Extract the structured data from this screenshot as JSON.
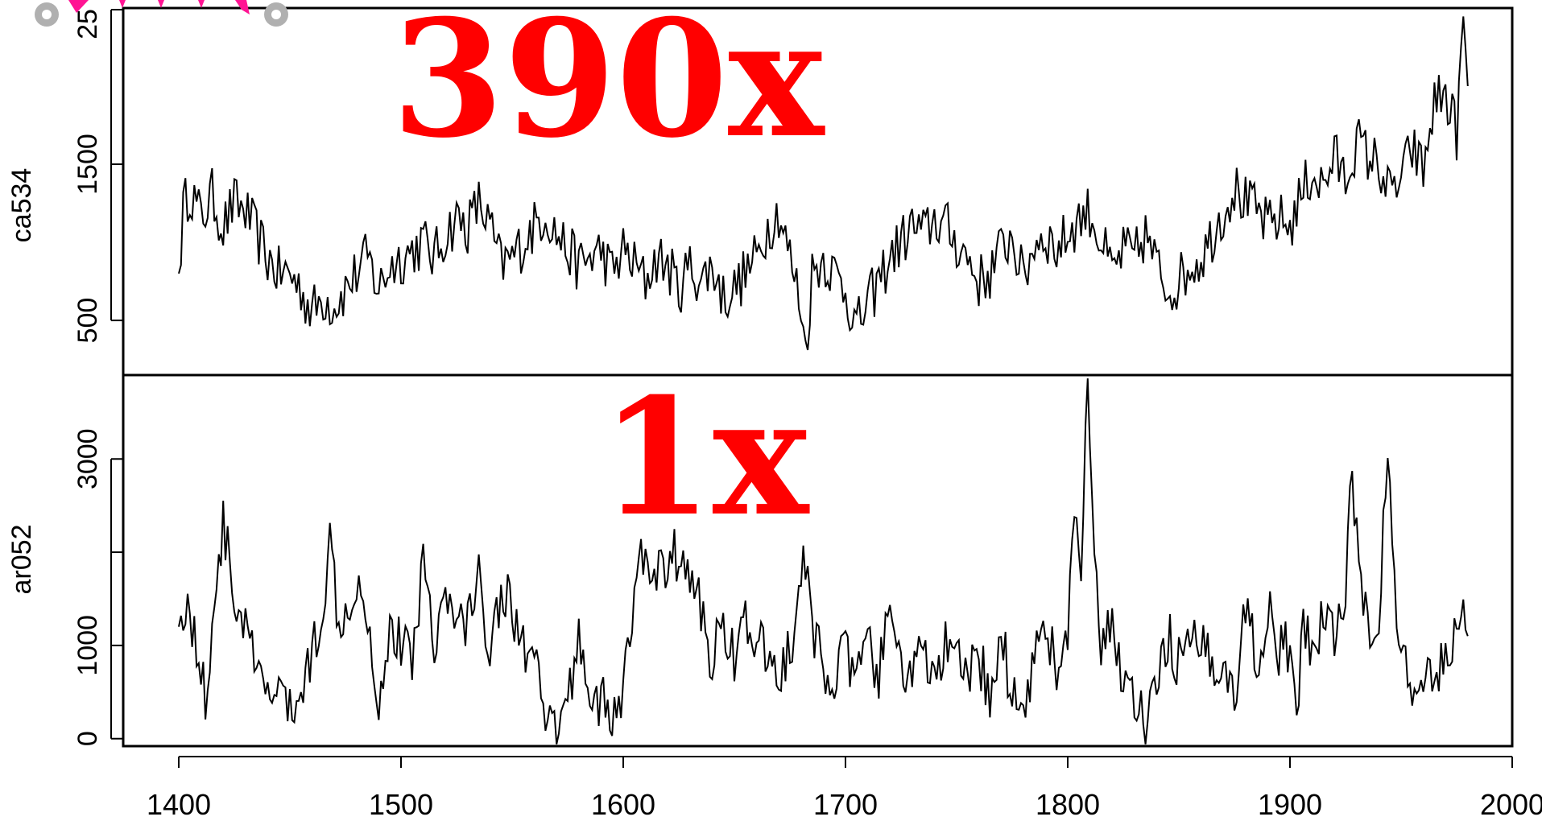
{
  "colors": {
    "overlay_text": "#ff0000",
    "series_line": "#000000",
    "axis": "#000000",
    "marker_pink": "#ff1493",
    "handle_gray": "#b0b0b0"
  },
  "overlay": {
    "top_label": "390x",
    "bottom_label": "1x"
  },
  "chart_data": [
    {
      "type": "line",
      "ylabel": "ca534",
      "ylim": [
        150,
        2500
      ],
      "y_ticks": [
        500,
        1500
      ],
      "y_tick_labels": [
        "500",
        "1500"
      ],
      "top_tick_partial_label": "25",
      "xlim": [
        1375,
        2000
      ],
      "grid": false,
      "series": [
        {
          "keypoints": [
            [
              1400,
              800
            ],
            [
              1402,
              1200
            ],
            [
              1405,
              1350
            ],
            [
              1410,
              1150
            ],
            [
              1415,
              1300
            ],
            [
              1420,
              1100
            ],
            [
              1425,
              1250
            ],
            [
              1430,
              1200
            ],
            [
              1435,
              1050
            ],
            [
              1440,
              900
            ],
            [
              1445,
              800
            ],
            [
              1450,
              800
            ],
            [
              1455,
              700
            ],
            [
              1460,
              550
            ],
            [
              1465,
              650
            ],
            [
              1470,
              600
            ],
            [
              1475,
              700
            ],
            [
              1480,
              800
            ],
            [
              1485,
              900
            ],
            [
              1490,
              700
            ],
            [
              1495,
              850
            ],
            [
              1500,
              900
            ],
            [
              1505,
              950
            ],
            [
              1510,
              1000
            ],
            [
              1515,
              900
            ],
            [
              1520,
              1050
            ],
            [
              1525,
              1150
            ],
            [
              1530,
              1100
            ],
            [
              1535,
              1250
            ],
            [
              1540,
              1100
            ],
            [
              1545,
              850
            ],
            [
              1550,
              900
            ],
            [
              1555,
              1000
            ],
            [
              1560,
              1100
            ],
            [
              1565,
              1200
            ],
            [
              1570,
              1050
            ],
            [
              1575,
              950
            ],
            [
              1580,
              850
            ],
            [
              1585,
              900
            ],
            [
              1590,
              950
            ],
            [
              1595,
              800
            ],
            [
              1600,
              950
            ],
            [
              1605,
              850
            ],
            [
              1610,
              750
            ],
            [
              1615,
              900
            ],
            [
              1620,
              850
            ],
            [
              1625,
              700
            ],
            [
              1630,
              850
            ],
            [
              1635,
              750
            ],
            [
              1640,
              850
            ],
            [
              1645,
              650
            ],
            [
              1650,
              700
            ],
            [
              1655,
              800
            ],
            [
              1660,
              900
            ],
            [
              1665,
              1100
            ],
            [
              1670,
              1200
            ],
            [
              1675,
              900
            ],
            [
              1680,
              600
            ],
            [
              1682,
              300
            ],
            [
              1685,
              800
            ],
            [
              1690,
              900
            ],
            [
              1695,
              800
            ],
            [
              1700,
              700
            ],
            [
              1705,
              450
            ],
            [
              1710,
              600
            ],
            [
              1715,
              750
            ],
            [
              1720,
              900
            ],
            [
              1725,
              1000
            ],
            [
              1730,
              1100
            ],
            [
              1735,
              1050
            ],
            [
              1740,
              1150
            ],
            [
              1745,
              1100
            ],
            [
              1750,
              1000
            ],
            [
              1755,
              900
            ],
            [
              1760,
              750
            ],
            [
              1765,
              800
            ],
            [
              1770,
              950
            ],
            [
              1775,
              1050
            ],
            [
              1780,
              750
            ],
            [
              1785,
              1000
            ],
            [
              1790,
              1050
            ],
            [
              1795,
              950
            ],
            [
              1800,
              1050
            ],
            [
              1805,
              1150
            ],
            [
              1810,
              1200
            ],
            [
              1815,
              1000
            ],
            [
              1820,
              800
            ],
            [
              1825,
              950
            ],
            [
              1830,
              900
            ],
            [
              1835,
              1050
            ],
            [
              1840,
              850
            ],
            [
              1845,
              700
            ],
            [
              1850,
              750
            ],
            [
              1855,
              850
            ],
            [
              1860,
              900
            ],
            [
              1865,
              1050
            ],
            [
              1870,
              1200
            ],
            [
              1875,
              1350
            ],
            [
              1880,
              1250
            ],
            [
              1885,
              1200
            ],
            [
              1890,
              1100
            ],
            [
              1895,
              1150
            ],
            [
              1900,
              1100
            ],
            [
              1905,
              1300
            ],
            [
              1910,
              1450
            ],
            [
              1915,
              1350
            ],
            [
              1920,
              1550
            ],
            [
              1925,
              1400
            ],
            [
              1930,
              1650
            ],
            [
              1935,
              1550
            ],
            [
              1940,
              1500
            ],
            [
              1945,
              1300
            ],
            [
              1950,
              1400
            ],
            [
              1955,
              1600
            ],
            [
              1960,
              1450
            ],
            [
              1965,
              1900
            ],
            [
              1970,
              1950
            ],
            [
              1975,
              1700
            ],
            [
              1978,
              2400
            ],
            [
              1980,
              2000
            ]
          ],
          "noise_amplitude": 180
        }
      ]
    },
    {
      "type": "line",
      "ylabel": "ar052",
      "ylim": [
        -80,
        3900
      ],
      "y_ticks": [
        0,
        1000,
        2000,
        3000
      ],
      "y_tick_labels": [
        "0",
        "1000",
        "",
        "3000"
      ],
      "xlim": [
        1375,
        2000
      ],
      "x_ticks": [
        1400,
        1500,
        1600,
        1700,
        1800,
        1900,
        2000
      ],
      "x_tick_labels": [
        "1400",
        "1500",
        "1600",
        "1700",
        "1800",
        "1900",
        "2000"
      ],
      "grid": false,
      "series": [
        {
          "keypoints": [
            [
              1400,
              1200
            ],
            [
              1403,
              1500
            ],
            [
              1408,
              1000
            ],
            [
              1412,
              400
            ],
            [
              1416,
              1500
            ],
            [
              1420,
              2300
            ],
            [
              1425,
              1500
            ],
            [
              1430,
              1200
            ],
            [
              1435,
              700
            ],
            [
              1440,
              400
            ],
            [
              1445,
              600
            ],
            [
              1450,
              250
            ],
            [
              1455,
              500
            ],
            [
              1460,
              900
            ],
            [
              1465,
              1500
            ],
            [
              1468,
              2100
            ],
            [
              1472,
              1300
            ],
            [
              1477,
              1500
            ],
            [
              1482,
              1800
            ],
            [
              1487,
              900
            ],
            [
              1490,
              400
            ],
            [
              1495,
              1200
            ],
            [
              1500,
              1000
            ],
            [
              1505,
              900
            ],
            [
              1510,
              1900
            ],
            [
              1515,
              1100
            ],
            [
              1520,
              1500
            ],
            [
              1525,
              1200
            ],
            [
              1530,
              1300
            ],
            [
              1535,
              1700
            ],
            [
              1540,
              1000
            ],
            [
              1545,
              1600
            ],
            [
              1550,
              1400
            ],
            [
              1555,
              1000
            ],
            [
              1560,
              800
            ],
            [
              1565,
              150
            ],
            [
              1570,
              50
            ],
            [
              1575,
              400
            ],
            [
              1580,
              1100
            ],
            [
              1585,
              500
            ],
            [
              1590,
              400
            ],
            [
              1595,
              200
            ],
            [
              1600,
              500
            ],
            [
              1605,
              1500
            ],
            [
              1610,
              2100
            ],
            [
              1615,
              1700
            ],
            [
              1620,
              1900
            ],
            [
              1625,
              2000
            ],
            [
              1630,
              1700
            ],
            [
              1635,
              1400
            ],
            [
              1640,
              800
            ],
            [
              1645,
              1300
            ],
            [
              1650,
              900
            ],
            [
              1655,
              1200
            ],
            [
              1660,
              1000
            ],
            [
              1665,
              900
            ],
            [
              1670,
              700
            ],
            [
              1675,
              900
            ],
            [
              1680,
              1600
            ],
            [
              1681,
              2100
            ],
            [
              1685,
              1100
            ],
            [
              1690,
              800
            ],
            [
              1695,
              700
            ],
            [
              1700,
              900
            ],
            [
              1705,
              600
            ],
            [
              1710,
              1000
            ],
            [
              1715,
              700
            ],
            [
              1720,
              1300
            ],
            [
              1725,
              800
            ],
            [
              1730,
              700
            ],
            [
              1735,
              900
            ],
            [
              1740,
              600
            ],
            [
              1745,
              1000
            ],
            [
              1750,
              800
            ],
            [
              1755,
              600
            ],
            [
              1760,
              900
            ],
            [
              1765,
              400
            ],
            [
              1770,
              1100
            ],
            [
              1775,
              500
            ],
            [
              1780,
              300
            ],
            [
              1785,
              900
            ],
            [
              1790,
              1300
            ],
            [
              1795,
              700
            ],
            [
              1800,
              1000
            ],
            [
              1803,
              2600
            ],
            [
              1806,
              1500
            ],
            [
              1809,
              3900
            ],
            [
              1812,
              1800
            ],
            [
              1815,
              900
            ],
            [
              1820,
              1200
            ],
            [
              1825,
              700
            ],
            [
              1830,
              400
            ],
            [
              1835,
              100
            ],
            [
              1840,
              500
            ],
            [
              1845,
              1100
            ],
            [
              1850,
              800
            ],
            [
              1855,
              900
            ],
            [
              1860,
              1100
            ],
            [
              1865,
              700
            ],
            [
              1870,
              1000
            ],
            [
              1875,
              300
            ],
            [
              1880,
              1500
            ],
            [
              1885,
              800
            ],
            [
              1890,
              1400
            ],
            [
              1895,
              900
            ],
            [
              1900,
              1000
            ],
            [
              1903,
              100
            ],
            [
              1906,
              1200
            ],
            [
              1910,
              900
            ],
            [
              1915,
              1400
            ],
            [
              1920,
              1000
            ],
            [
              1925,
              1700
            ],
            [
              1928,
              2800
            ],
            [
              1932,
              1500
            ],
            [
              1935,
              1200
            ],
            [
              1940,
              1400
            ],
            [
              1944,
              2900
            ],
            [
              1948,
              1300
            ],
            [
              1952,
              800
            ],
            [
              1957,
              200
            ],
            [
              1960,
              500
            ],
            [
              1965,
              700
            ],
            [
              1970,
              900
            ],
            [
              1975,
              1200
            ],
            [
              1978,
              1500
            ],
            [
              1980,
              1100
            ]
          ],
          "noise_amplitude": 300
        }
      ]
    }
  ]
}
